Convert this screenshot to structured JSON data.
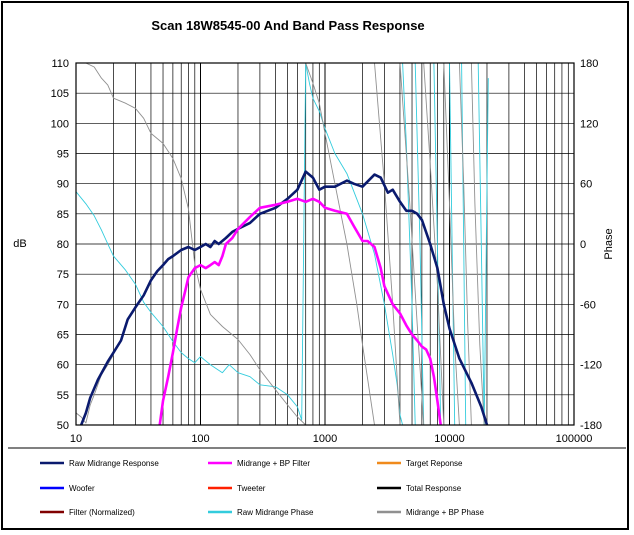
{
  "chart_data": {
    "type": "line",
    "title": "Scan 18W8545-00   And Band Pass Response",
    "xlabel": "",
    "ylabel": "dB",
    "y2label": "Phase",
    "xscale": "log",
    "xlim": [
      10,
      100000
    ],
    "ylim": [
      50,
      110
    ],
    "y2lim": [
      -180,
      180
    ],
    "grid": true,
    "legend_position": "bottom",
    "x_tick_labels": [
      "10",
      "100",
      "1000",
      "10000",
      "100000"
    ],
    "y_tick_labels": [
      "50",
      "55",
      "60",
      "65",
      "70",
      "75",
      "80",
      "85",
      "90",
      "95",
      "100",
      "105",
      "110"
    ],
    "y2_tick_labels": [
      "-180",
      "-120",
      "-60",
      "0",
      "60",
      "120",
      "180"
    ],
    "legend": [
      {
        "name": "Raw Midrange Response",
        "color": "#0a1a6e"
      },
      {
        "name": "Midrange + BP Filter",
        "color": "#ff00ff"
      },
      {
        "name": "Target Reponse",
        "color": "#f08a1c"
      },
      {
        "name": "Woofer",
        "color": "#0000ff"
      },
      {
        "name": "Tweeter",
        "color": "#ff2000"
      },
      {
        "name": "Total Response",
        "color": "#000000"
      },
      {
        "name": "Filter (Normalized)",
        "color": "#800000"
      },
      {
        "name": "Raw Midrange Phase",
        "color": "#33ccdd"
      },
      {
        "name": "Midrange + BP Phase",
        "color": "#909090"
      }
    ],
    "series": [
      {
        "name": "Raw Midrange Response",
        "axis": "y",
        "color": "#0a1a6e",
        "width": 2.6,
        "x": [
          11,
          12,
          13,
          15,
          18,
          20,
          23,
          26,
          30,
          35,
          40,
          45,
          50,
          55,
          60,
          70,
          80,
          90,
          100,
          110,
          120,
          130,
          140,
          160,
          180,
          200,
          250,
          300,
          400,
          500,
          600,
          700,
          800,
          900,
          1000,
          1200,
          1500,
          1700,
          2000,
          2500,
          2800,
          3200,
          3500,
          4000,
          4500,
          5000,
          5500,
          6000,
          7000,
          8000,
          9000,
          10000,
          12000,
          15000,
          18000,
          20000
        ],
        "y": [
          50,
          52,
          54.5,
          57.5,
          60.5,
          62,
          64,
          67.5,
          69.5,
          71.5,
          74,
          75.5,
          76.5,
          77.5,
          78,
          79,
          79.5,
          79,
          79.5,
          80,
          79.5,
          80.5,
          80,
          81,
          82,
          82.5,
          83.5,
          85,
          86,
          87.5,
          89,
          92,
          91,
          89,
          89.5,
          89.5,
          90.5,
          90,
          89.5,
          91.5,
          91,
          88.5,
          89,
          87,
          85.5,
          85.5,
          85,
          84,
          80,
          76,
          70,
          66,
          61,
          57,
          53,
          50
        ]
      },
      {
        "name": "Midrange + BP Filter",
        "axis": "y",
        "color": "#ff00ff",
        "width": 2.6,
        "x": [
          47,
          50,
          55,
          60,
          65,
          70,
          75,
          80,
          90,
          100,
          110,
          120,
          130,
          140,
          150,
          160,
          180,
          200,
          250,
          300,
          400,
          500,
          600,
          700,
          800,
          900,
          1000,
          1200,
          1500,
          1700,
          2000,
          2200,
          2500,
          2800,
          3000,
          3500,
          4000,
          4500,
          5000,
          5500,
          6000,
          6500,
          7000,
          7500,
          8000,
          8500
        ],
        "y": [
          50,
          54,
          58,
          62,
          66,
          69.5,
          72,
          74.5,
          76,
          76.5,
          76,
          76.5,
          77,
          76.5,
          78,
          80,
          81,
          82.5,
          84.5,
          86,
          86.5,
          87,
          87.5,
          87,
          87.5,
          87,
          86,
          85.5,
          85,
          83,
          80.5,
          80.5,
          79.5,
          76,
          73,
          70,
          68.5,
          66.5,
          65,
          64,
          63,
          62.5,
          61,
          58,
          54,
          50
        ]
      },
      {
        "name": "Raw Midrange Phase",
        "axis": "y2",
        "color": "#33ccdd",
        "width": 0.9,
        "x": [
          10,
          12,
          14,
          16,
          18,
          20,
          25,
          30,
          35,
          40,
          50,
          60,
          70,
          80,
          90,
          100,
          120,
          150,
          170,
          200,
          250,
          300,
          400,
          500,
          600,
          650,
          700,
          750,
          800,
          900,
          1000,
          1200,
          1500,
          2000,
          2500,
          3000,
          3500,
          3800,
          4000,
          4200
        ],
        "y": [
          52,
          40,
          28,
          14,
          0,
          -12,
          -26,
          -40,
          -58,
          -68,
          -82,
          -97,
          -108,
          -114,
          -118,
          -112,
          -120,
          -128,
          -120,
          -128,
          -132,
          -140,
          -142,
          -150,
          -162,
          -175,
          180,
          160,
          145,
          132,
          115,
          90,
          70,
          30,
          -10,
          -60,
          -110,
          -140,
          -170,
          -180
        ]
      },
      {
        "name": "Raw Midrange Phase (wrap 2)",
        "axis": "y2",
        "color": "#33ccdd",
        "width": 0.9,
        "x": [
          4200,
          4500,
          5000,
          5300
        ],
        "y": [
          180,
          100,
          -60,
          -180
        ]
      },
      {
        "name": "Raw Midrange Phase (wrap 3)",
        "axis": "y2",
        "color": "#33ccdd",
        "width": 0.9,
        "x": [
          5300,
          5800,
          6200
        ],
        "y": [
          180,
          0,
          -180
        ]
      },
      {
        "name": "Raw Midrange Phase (wrap 4)",
        "axis": "y2",
        "color": "#33ccdd",
        "width": 0.9,
        "x": [
          7500,
          8000,
          8500
        ],
        "y": [
          180,
          0,
          -180
        ]
      },
      {
        "name": "Raw Midrange Phase (wrap 5)",
        "axis": "y2",
        "color": "#33ccdd",
        "width": 0.9,
        "x": [
          10000,
          10500,
          11000
        ],
        "y": [
          180,
          0,
          -180
        ]
      },
      {
        "name": "Raw Midrange Phase (wrap 6)",
        "axis": "y2",
        "color": "#33ccdd",
        "width": 0.9,
        "x": [
          12500,
          13000,
          13500
        ],
        "y": [
          180,
          0,
          -180
        ]
      },
      {
        "name": "Raw Midrange Phase (wrap 7)",
        "axis": "y2",
        "color": "#33ccdd",
        "width": 0.9,
        "x": [
          17000,
          18000,
          19000
        ],
        "y": [
          180,
          0,
          -180
        ]
      },
      {
        "name": "Raw Midrange Phase (wrap 8)",
        "axis": "y2",
        "color": "#33ccdd",
        "width": 0.9,
        "x": [
          19000,
          20000,
          20500
        ],
        "y": [
          -180,
          60,
          165
        ]
      },
      {
        "name": "Midrange + BP Phase",
        "axis": "y2",
        "color": "#909090",
        "width": 0.9,
        "x": [
          10,
          11,
          12,
          13,
          14,
          16,
          18,
          20
        ],
        "y": [
          -168,
          -172,
          -178,
          -160,
          -150,
          -130,
          -120,
          -110
        ]
      },
      {
        "name": "Midrange + BP Phase (2)",
        "axis": "y2",
        "color": "#909090",
        "width": 0.9,
        "x": [
          12,
          14,
          16,
          18,
          20,
          25,
          30,
          35,
          40,
          50,
          60,
          70,
          80,
          90,
          100,
          120,
          150,
          200,
          250,
          300,
          400,
          500,
          600,
          700
        ],
        "y": [
          180,
          176,
          165,
          158,
          145,
          140,
          135,
          125,
          110,
          100,
          85,
          65,
          35,
          -20,
          -45,
          -70,
          -82,
          -95,
          -110,
          -125,
          -145,
          -160,
          -172,
          -180
        ]
      },
      {
        "name": "Midrange + BP Phase (3)",
        "axis": "y2",
        "color": "#909090",
        "width": 0.9,
        "x": [
          700,
          800,
          900,
          1000,
          1200,
          1500,
          1800,
          2000,
          2300,
          2500
        ],
        "y": [
          180,
          160,
          140,
          110,
          60,
          0,
          -60,
          -100,
          -150,
          -180
        ]
      },
      {
        "name": "Midrange + BP Phase (4)",
        "axis": "y2",
        "color": "#909090",
        "width": 0.9,
        "x": [
          2500,
          3000,
          3500,
          4000
        ],
        "y": [
          180,
          60,
          -60,
          -180
        ]
      },
      {
        "name": "Midrange + BP Phase (5)",
        "axis": "y2",
        "color": "#909090",
        "width": 0.9,
        "x": [
          4000,
          4800,
          5500,
          6200
        ],
        "y": [
          180,
          40,
          -80,
          -180
        ]
      },
      {
        "name": "Midrange + BP Phase (6)",
        "axis": "y2",
        "color": "#909090",
        "width": 0.9,
        "x": [
          6200,
          7000,
          8000,
          9000
        ],
        "y": [
          180,
          80,
          -40,
          -180
        ]
      },
      {
        "name": "Midrange + BP Phase (7)",
        "axis": "y2",
        "color": "#909090",
        "width": 0.9,
        "x": [
          9000,
          10000,
          11000,
          12000
        ],
        "y": [
          180,
          40,
          -100,
          -180
        ]
      },
      {
        "name": "Midrange + BP Phase (8)",
        "axis": "y2",
        "color": "#909090",
        "width": 0.9,
        "x": [
          12000,
          13000,
          14000,
          15000
        ],
        "y": [
          180,
          60,
          -80,
          -180
        ]
      },
      {
        "name": "Midrange + BP Phase (9)",
        "axis": "y2",
        "color": "#909090",
        "width": 0.9,
        "x": [
          15000,
          16000,
          17500,
          19000
        ],
        "y": [
          180,
          40,
          -100,
          -180
        ]
      }
    ]
  }
}
